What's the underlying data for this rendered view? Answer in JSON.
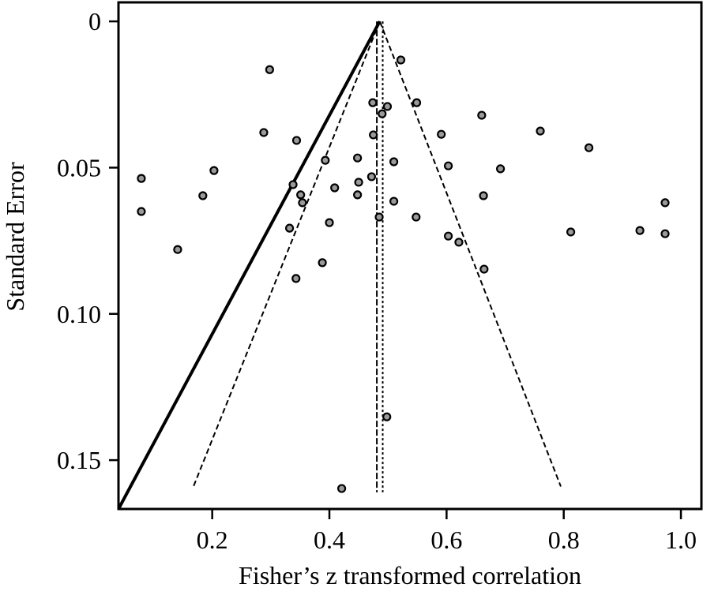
{
  "chart_data": {
    "type": "scatter",
    "title": "",
    "xlabel": "Fisher’s z transformed correlation",
    "ylabel": "Standard Error",
    "xlim": [
      0.04,
      1.035
    ],
    "ylim": [
      -0.0065,
      0.1667
    ],
    "y_inverted": true,
    "grid": false,
    "xticks": [
      {
        "v": 0.2,
        "label": "0.2"
      },
      {
        "v": 0.4,
        "label": "0.4"
      },
      {
        "v": 0.6,
        "label": "0.6"
      },
      {
        "v": 0.8,
        "label": "0.8"
      },
      {
        "v": 1.0,
        "label": "1.0"
      }
    ],
    "yticks": [
      {
        "v": 0,
        "label": "0"
      },
      {
        "v": 0.05,
        "label": "0.05"
      },
      {
        "v": 0.1,
        "label": "0.10"
      },
      {
        "v": 0.15,
        "label": "0.15"
      }
    ],
    "points": [
      [
        0.298,
        0.0165
      ],
      [
        0.522,
        0.0132
      ],
      [
        0.474,
        0.0278
      ],
      [
        0.499,
        0.0291
      ],
      [
        0.49,
        0.0316
      ],
      [
        0.549,
        0.0278
      ],
      [
        0.66,
        0.0321
      ],
      [
        0.76,
        0.0375
      ],
      [
        0.843,
        0.0432
      ],
      [
        0.288,
        0.038
      ],
      [
        0.344,
        0.0407
      ],
      [
        0.475,
        0.0388
      ],
      [
        0.591,
        0.0386
      ],
      [
        0.393,
        0.0475
      ],
      [
        0.448,
        0.0467
      ],
      [
        0.51,
        0.048
      ],
      [
        0.603,
        0.0494
      ],
      [
        0.692,
        0.0504
      ],
      [
        0.203,
        0.051
      ],
      [
        0.079,
        0.0537
      ],
      [
        0.338,
        0.0558
      ],
      [
        0.45,
        0.055
      ],
      [
        0.472,
        0.0531
      ],
      [
        0.409,
        0.0569
      ],
      [
        0.351,
        0.0593
      ],
      [
        0.354,
        0.062
      ],
      [
        0.184,
        0.0596
      ],
      [
        0.448,
        0.0593
      ],
      [
        0.51,
        0.0615
      ],
      [
        0.663,
        0.0596
      ],
      [
        0.079,
        0.065
      ],
      [
        0.973,
        0.062
      ],
      [
        0.485,
        0.0669
      ],
      [
        0.548,
        0.0669
      ],
      [
        0.4,
        0.0688
      ],
      [
        0.332,
        0.0707
      ],
      [
        0.603,
        0.0734
      ],
      [
        0.621,
        0.0755
      ],
      [
        0.812,
        0.072
      ],
      [
        0.93,
        0.0715
      ],
      [
        0.973,
        0.0726
      ],
      [
        0.141,
        0.078
      ],
      [
        0.388,
        0.0825
      ],
      [
        0.664,
        0.0847
      ],
      [
        0.343,
        0.0879
      ],
      [
        0.498,
        0.1352
      ],
      [
        0.421,
        0.1597
      ]
    ],
    "funnel": {
      "apex": [
        0.486,
        0
      ],
      "left_end": [
        0.168,
        0.159
      ],
      "right_end": [
        0.795,
        0.159
      ]
    },
    "vertical_lines": [
      0.481,
      0.491
    ],
    "regression_line": {
      "from": [
        0.486,
        0
      ],
      "to": [
        0.04,
        0.1667
      ]
    },
    "colors": {
      "point_fill": "#9a9a9a",
      "stroke": "#000000"
    }
  }
}
